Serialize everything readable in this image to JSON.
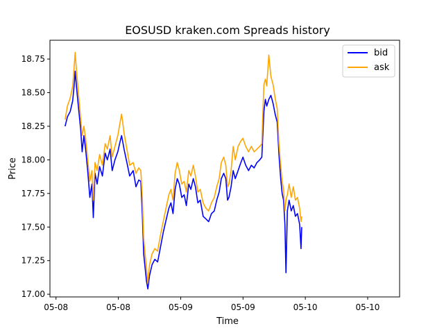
{
  "chart_data": {
    "type": "line",
    "title": "EOSUSD kraken.com Spreads history",
    "xlabel": "Time",
    "ylabel": "Price",
    "xlim": [
      0,
      1
    ],
    "ylim": [
      16.98,
      18.89
    ],
    "x_ticks": [
      {
        "pos": 0.0173,
        "label": "05-08"
      },
      {
        "pos": 0.1956,
        "label": "05-08"
      },
      {
        "pos": 0.3739,
        "label": "05-09"
      },
      {
        "pos": 0.5522,
        "label": "05-09"
      },
      {
        "pos": 0.7304,
        "label": "05-10"
      },
      {
        "pos": 0.9087,
        "label": "05-10"
      }
    ],
    "y_ticks": [
      17.0,
      17.25,
      17.5,
      17.75,
      18.0,
      18.25,
      18.5,
      18.75
    ],
    "y_tick_labels": [
      "17.00",
      "17.25",
      "17.50",
      "17.75",
      "18.00",
      "18.25",
      "18.50",
      "18.75"
    ],
    "legend": {
      "placement": "top-right"
    },
    "series": [
      {
        "name": "bid",
        "color": "#0000ff",
        "points": [
          [
            0.0433,
            18.25
          ],
          [
            0.05,
            18.32
          ],
          [
            0.058,
            18.36
          ],
          [
            0.065,
            18.44
          ],
          [
            0.07,
            18.58
          ],
          [
            0.072,
            18.66
          ],
          [
            0.076,
            18.54
          ],
          [
            0.082,
            18.38
          ],
          [
            0.088,
            18.22
          ],
          [
            0.092,
            18.06
          ],
          [
            0.097,
            18.18
          ],
          [
            0.102,
            18.08
          ],
          [
            0.108,
            17.92
          ],
          [
            0.114,
            17.72
          ],
          [
            0.12,
            17.82
          ],
          [
            0.124,
            17.57
          ],
          [
            0.129,
            17.9
          ],
          [
            0.135,
            17.82
          ],
          [
            0.142,
            17.95
          ],
          [
            0.15,
            17.88
          ],
          [
            0.158,
            18.05
          ],
          [
            0.164,
            18.0
          ],
          [
            0.172,
            18.08
          ],
          [
            0.178,
            17.92
          ],
          [
            0.186,
            18.0
          ],
          [
            0.194,
            18.06
          ],
          [
            0.2,
            18.13
          ],
          [
            0.205,
            18.18
          ],
          [
            0.212,
            18.08
          ],
          [
            0.22,
            17.98
          ],
          [
            0.228,
            17.88
          ],
          [
            0.238,
            17.92
          ],
          [
            0.246,
            17.8
          ],
          [
            0.254,
            17.85
          ],
          [
            0.26,
            17.84
          ],
          [
            0.264,
            17.6
          ],
          [
            0.268,
            17.3
          ],
          [
            0.272,
            17.2
          ],
          [
            0.276,
            17.1
          ],
          [
            0.28,
            17.04
          ],
          [
            0.285,
            17.14
          ],
          [
            0.292,
            17.22
          ],
          [
            0.3,
            17.26
          ],
          [
            0.308,
            17.24
          ],
          [
            0.316,
            17.35
          ],
          [
            0.324,
            17.46
          ],
          [
            0.332,
            17.55
          ],
          [
            0.34,
            17.64
          ],
          [
            0.346,
            17.68
          ],
          [
            0.352,
            17.6
          ],
          [
            0.358,
            17.78
          ],
          [
            0.364,
            17.86
          ],
          [
            0.37,
            17.82
          ],
          [
            0.377,
            17.72
          ],
          [
            0.384,
            17.74
          ],
          [
            0.39,
            17.66
          ],
          [
            0.397,
            17.82
          ],
          [
            0.403,
            17.78
          ],
          [
            0.41,
            17.86
          ],
          [
            0.416,
            17.8
          ],
          [
            0.423,
            17.68
          ],
          [
            0.43,
            17.7
          ],
          [
            0.438,
            17.58
          ],
          [
            0.446,
            17.56
          ],
          [
            0.454,
            17.54
          ],
          [
            0.462,
            17.6
          ],
          [
            0.47,
            17.62
          ],
          [
            0.477,
            17.7
          ],
          [
            0.484,
            17.76
          ],
          [
            0.49,
            17.86
          ],
          [
            0.497,
            17.9
          ],
          [
            0.503,
            17.86
          ],
          [
            0.508,
            17.7
          ],
          [
            0.512,
            17.72
          ],
          [
            0.518,
            17.8
          ],
          [
            0.524,
            17.92
          ],
          [
            0.53,
            17.86
          ],
          [
            0.538,
            17.92
          ],
          [
            0.546,
            17.98
          ],
          [
            0.552,
            18.02
          ],
          [
            0.56,
            17.96
          ],
          [
            0.568,
            17.92
          ],
          [
            0.576,
            17.96
          ],
          [
            0.584,
            17.94
          ],
          [
            0.592,
            17.98
          ],
          [
            0.6,
            18.0
          ],
          [
            0.606,
            18.02
          ],
          [
            0.612,
            18.36
          ],
          [
            0.616,
            18.45
          ],
          [
            0.62,
            18.4
          ],
          [
            0.626,
            18.45
          ],
          [
            0.632,
            18.48
          ],
          [
            0.638,
            18.42
          ],
          [
            0.644,
            18.34
          ],
          [
            0.65,
            18.28
          ],
          [
            0.655,
            18.04
          ],
          [
            0.66,
            17.86
          ],
          [
            0.664,
            17.75
          ],
          [
            0.668,
            17.7
          ],
          [
            0.672,
            17.52
          ],
          [
            0.675,
            17.16
          ],
          [
            0.679,
            17.62
          ],
          [
            0.684,
            17.7
          ],
          [
            0.69,
            17.62
          ],
          [
            0.696,
            17.66
          ],
          [
            0.702,
            17.58
          ],
          [
            0.708,
            17.6
          ],
          [
            0.714,
            17.52
          ],
          [
            0.718,
            17.34
          ],
          [
            0.72,
            17.5
          ]
        ]
      },
      {
        "name": "ask",
        "color": "#ffa500",
        "points": [
          [
            0.0433,
            18.3
          ],
          [
            0.05,
            18.4
          ],
          [
            0.058,
            18.46
          ],
          [
            0.065,
            18.55
          ],
          [
            0.07,
            18.72
          ],
          [
            0.072,
            18.8
          ],
          [
            0.076,
            18.66
          ],
          [
            0.082,
            18.48
          ],
          [
            0.088,
            18.3
          ],
          [
            0.092,
            18.18
          ],
          [
            0.097,
            18.25
          ],
          [
            0.102,
            18.16
          ],
          [
            0.108,
            18.0
          ],
          [
            0.114,
            17.84
          ],
          [
            0.12,
            17.92
          ],
          [
            0.124,
            17.7
          ],
          [
            0.129,
            17.98
          ],
          [
            0.135,
            17.92
          ],
          [
            0.142,
            18.04
          ],
          [
            0.15,
            17.96
          ],
          [
            0.158,
            18.12
          ],
          [
            0.164,
            18.08
          ],
          [
            0.172,
            18.18
          ],
          [
            0.178,
            18.02
          ],
          [
            0.186,
            18.1
          ],
          [
            0.194,
            18.18
          ],
          [
            0.2,
            18.27
          ],
          [
            0.205,
            18.34
          ],
          [
            0.212,
            18.2
          ],
          [
            0.22,
            18.08
          ],
          [
            0.228,
            17.96
          ],
          [
            0.238,
            17.98
          ],
          [
            0.246,
            17.9
          ],
          [
            0.254,
            17.94
          ],
          [
            0.26,
            17.92
          ],
          [
            0.264,
            17.72
          ],
          [
            0.268,
            17.42
          ],
          [
            0.272,
            17.3
          ],
          [
            0.276,
            17.2
          ],
          [
            0.28,
            17.08
          ],
          [
            0.285,
            17.22
          ],
          [
            0.292,
            17.3
          ],
          [
            0.3,
            17.34
          ],
          [
            0.308,
            17.32
          ],
          [
            0.316,
            17.44
          ],
          [
            0.324,
            17.54
          ],
          [
            0.332,
            17.64
          ],
          [
            0.34,
            17.74
          ],
          [
            0.346,
            17.78
          ],
          [
            0.352,
            17.7
          ],
          [
            0.358,
            17.9
          ],
          [
            0.364,
            17.98
          ],
          [
            0.37,
            17.92
          ],
          [
            0.377,
            17.82
          ],
          [
            0.384,
            17.84
          ],
          [
            0.39,
            17.76
          ],
          [
            0.397,
            17.92
          ],
          [
            0.403,
            17.88
          ],
          [
            0.41,
            17.96
          ],
          [
            0.416,
            17.88
          ],
          [
            0.423,
            17.76
          ],
          [
            0.43,
            17.78
          ],
          [
            0.438,
            17.68
          ],
          [
            0.446,
            17.64
          ],
          [
            0.454,
            17.62
          ],
          [
            0.462,
            17.68
          ],
          [
            0.47,
            17.72
          ],
          [
            0.477,
            17.8
          ],
          [
            0.484,
            17.86
          ],
          [
            0.49,
            17.98
          ],
          [
            0.497,
            18.02
          ],
          [
            0.503,
            17.96
          ],
          [
            0.508,
            17.8
          ],
          [
            0.512,
            17.82
          ],
          [
            0.518,
            17.92
          ],
          [
            0.524,
            18.1
          ],
          [
            0.53,
            18.0
          ],
          [
            0.538,
            18.1
          ],
          [
            0.546,
            18.14
          ],
          [
            0.552,
            18.16
          ],
          [
            0.56,
            18.1
          ],
          [
            0.568,
            18.06
          ],
          [
            0.576,
            18.1
          ],
          [
            0.584,
            18.06
          ],
          [
            0.592,
            18.08
          ],
          [
            0.6,
            18.1
          ],
          [
            0.606,
            18.12
          ],
          [
            0.612,
            18.56
          ],
          [
            0.616,
            18.6
          ],
          [
            0.62,
            18.55
          ],
          [
            0.626,
            18.78
          ],
          [
            0.632,
            18.62
          ],
          [
            0.638,
            18.56
          ],
          [
            0.644,
            18.46
          ],
          [
            0.65,
            18.38
          ],
          [
            0.655,
            18.12
          ],
          [
            0.66,
            17.96
          ],
          [
            0.664,
            17.84
          ],
          [
            0.668,
            17.78
          ],
          [
            0.672,
            17.62
          ],
          [
            0.675,
            17.7
          ],
          [
            0.679,
            17.74
          ],
          [
            0.684,
            17.82
          ],
          [
            0.69,
            17.72
          ],
          [
            0.696,
            17.8
          ],
          [
            0.702,
            17.7
          ],
          [
            0.708,
            17.72
          ],
          [
            0.714,
            17.64
          ],
          [
            0.718,
            17.54
          ],
          [
            0.72,
            17.58
          ]
        ]
      }
    ]
  }
}
